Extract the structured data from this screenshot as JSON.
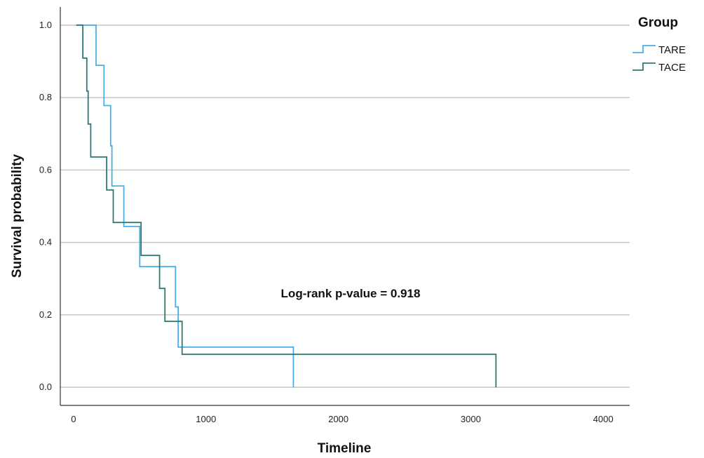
{
  "chart_data": {
    "type": "line",
    "xlabel": "Timeline",
    "ylabel": "Survival probability",
    "xlim": [
      -100,
      4200
    ],
    "ylim": [
      -0.05,
      1.05
    ],
    "x_ticks": [
      0,
      1000,
      2000,
      3000,
      4000
    ],
    "y_ticks": [
      0.0,
      0.2,
      0.4,
      0.6,
      0.8,
      1.0
    ],
    "x_tick_labels": [
      "0",
      "1000",
      "2000",
      "3000",
      "4000"
    ],
    "y_tick_labels": [
      "0.0",
      "0.2",
      "0.4",
      "0.6",
      "0.8",
      "1.0"
    ],
    "grid": "horizontal",
    "legend": {
      "title": "Group",
      "position": "top-right"
    },
    "annotation": "Log-rank p-value = 0.918",
    "series": [
      {
        "name": "TARE",
        "color": "#4aaee8",
        "step": true,
        "points": [
          [
            20,
            1.0
          ],
          [
            170,
            1.0
          ],
          [
            170,
            0.889
          ],
          [
            230,
            0.889
          ],
          [
            230,
            0.778
          ],
          [
            280,
            0.778
          ],
          [
            280,
            0.667
          ],
          [
            290,
            0.667
          ],
          [
            290,
            0.556
          ],
          [
            380,
            0.556
          ],
          [
            380,
            0.444
          ],
          [
            500,
            0.444
          ],
          [
            500,
            0.333
          ],
          [
            770,
            0.333
          ],
          [
            770,
            0.222
          ],
          [
            790,
            0.222
          ],
          [
            790,
            0.111
          ],
          [
            1660,
            0.111
          ],
          [
            1660,
            0.0
          ]
        ]
      },
      {
        "name": "TACE",
        "color": "#2e7a74",
        "step": true,
        "points": [
          [
            20,
            1.0
          ],
          [
            70,
            1.0
          ],
          [
            70,
            0.909
          ],
          [
            100,
            0.909
          ],
          [
            100,
            0.818
          ],
          [
            110,
            0.818
          ],
          [
            110,
            0.727
          ],
          [
            130,
            0.727
          ],
          [
            130,
            0.636
          ],
          [
            250,
            0.636
          ],
          [
            250,
            0.545
          ],
          [
            300,
            0.545
          ],
          [
            300,
            0.455
          ],
          [
            510,
            0.455
          ],
          [
            510,
            0.364
          ],
          [
            650,
            0.364
          ],
          [
            650,
            0.273
          ],
          [
            690,
            0.273
          ],
          [
            690,
            0.182
          ],
          [
            820,
            0.182
          ],
          [
            820,
            0.091
          ],
          [
            3190,
            0.091
          ],
          [
            3190,
            0.0
          ]
        ]
      }
    ]
  }
}
